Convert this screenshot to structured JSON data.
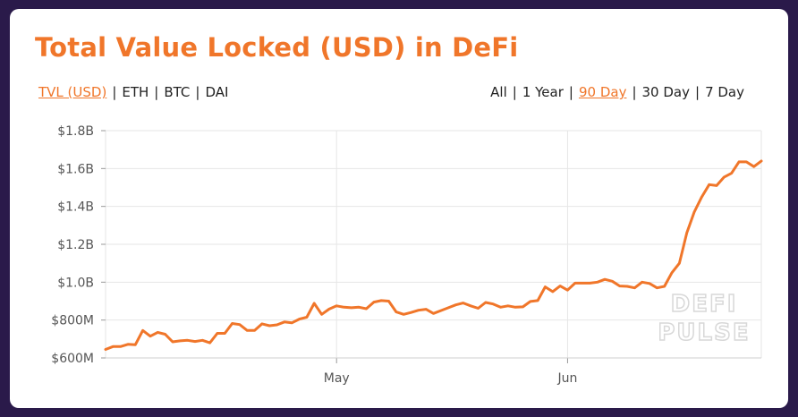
{
  "header": {
    "title": "Total Value Locked (USD) in DeFi",
    "unit_options": [
      {
        "label": "TVL (USD)",
        "active": true
      },
      {
        "label": "ETH",
        "active": false
      },
      {
        "label": "BTC",
        "active": false
      },
      {
        "label": "DAI",
        "active": false
      }
    ],
    "range_options": [
      {
        "label": "All",
        "active": false
      },
      {
        "label": "1 Year",
        "active": false
      },
      {
        "label": "90 Day",
        "active": true
      },
      {
        "label": "30 Day",
        "active": false
      },
      {
        "label": "7 Day",
        "active": false
      }
    ],
    "separator": "|"
  },
  "watermark": {
    "line1": "DEFI",
    "line2": "PULSE"
  },
  "colors": {
    "accent": "#f0762a",
    "background": "#2a1a4a",
    "grid": "#e6e6e6"
  },
  "chart_data": {
    "type": "line",
    "title": "Total Value Locked (USD) in DeFi",
    "xlabel": "",
    "ylabel": "",
    "y_ticks": [
      {
        "value": 600000000,
        "label": "$600M"
      },
      {
        "value": 800000000,
        "label": "$800M"
      },
      {
        "value": 1000000000,
        "label": "$1.0B"
      },
      {
        "value": 1200000000,
        "label": "$1.2B"
      },
      {
        "value": 1400000000,
        "label": "$1.4B"
      },
      {
        "value": 1600000000,
        "label": "$1.6B"
      },
      {
        "value": 1800000000,
        "label": "$1.8B"
      }
    ],
    "ylim": [
      600000000,
      1800000000
    ],
    "x_ticks": [
      {
        "date": "2020-05-01",
        "label": "May"
      },
      {
        "date": "2020-06-01",
        "label": "Jun"
      }
    ],
    "xlim": [
      "2020-03-31",
      "2020-06-27"
    ],
    "grid": true,
    "legend": "none",
    "series": [
      {
        "x": [
          "2020-03-31",
          "2020-04-01",
          "2020-04-02",
          "2020-04-03",
          "2020-04-04",
          "2020-04-05",
          "2020-04-06",
          "2020-04-07",
          "2020-04-08",
          "2020-04-09",
          "2020-04-10",
          "2020-04-11",
          "2020-04-12",
          "2020-04-13",
          "2020-04-14",
          "2020-04-15",
          "2020-04-16",
          "2020-04-17",
          "2020-04-18",
          "2020-04-19",
          "2020-04-20",
          "2020-04-21",
          "2020-04-22",
          "2020-04-23",
          "2020-04-24",
          "2020-04-25",
          "2020-04-26",
          "2020-04-27",
          "2020-04-28",
          "2020-04-29",
          "2020-04-30",
          "2020-05-01",
          "2020-05-02",
          "2020-05-03",
          "2020-05-04",
          "2020-05-05",
          "2020-05-06",
          "2020-05-07",
          "2020-05-08",
          "2020-05-09",
          "2020-05-10",
          "2020-05-11",
          "2020-05-12",
          "2020-05-13",
          "2020-05-14",
          "2020-05-15",
          "2020-05-16",
          "2020-05-17",
          "2020-05-18",
          "2020-05-19",
          "2020-05-20",
          "2020-05-21",
          "2020-05-22",
          "2020-05-23",
          "2020-05-24",
          "2020-05-25",
          "2020-05-26",
          "2020-05-27",
          "2020-05-28",
          "2020-05-29",
          "2020-05-30",
          "2020-05-31",
          "2020-06-01",
          "2020-06-02",
          "2020-06-03",
          "2020-06-04",
          "2020-06-05",
          "2020-06-06",
          "2020-06-07",
          "2020-06-08",
          "2020-06-09",
          "2020-06-10",
          "2020-06-11",
          "2020-06-12",
          "2020-06-13",
          "2020-06-14",
          "2020-06-15",
          "2020-06-16",
          "2020-06-17",
          "2020-06-18",
          "2020-06-19",
          "2020-06-20",
          "2020-06-21",
          "2020-06-22",
          "2020-06-23",
          "2020-06-24",
          "2020-06-25",
          "2020-06-26",
          "2020-06-27"
        ],
        "values": [
          645000000,
          660000000,
          660000000,
          672000000,
          670000000,
          745000000,
          715000000,
          735000000,
          725000000,
          685000000,
          690000000,
          693000000,
          687000000,
          693000000,
          680000000,
          730000000,
          730000000,
          782000000,
          776000000,
          745000000,
          745000000,
          780000000,
          770000000,
          775000000,
          790000000,
          785000000,
          805000000,
          815000000,
          888000000,
          830000000,
          858000000,
          875000000,
          868000000,
          865000000,
          868000000,
          860000000,
          895000000,
          903000000,
          900000000,
          843000000,
          830000000,
          840000000,
          852000000,
          857000000,
          835000000,
          850000000,
          865000000,
          880000000,
          890000000,
          875000000,
          862000000,
          893000000,
          885000000,
          868000000,
          875000000,
          868000000,
          870000000,
          898000000,
          903000000,
          975000000,
          950000000,
          980000000,
          958000000,
          995000000,
          995000000,
          995000000,
          1000000000,
          1015000000,
          1005000000,
          980000000,
          978000000,
          970000000,
          1000000000,
          993000000,
          970000000,
          978000000,
          1050000000,
          1100000000,
          1260000000,
          1370000000,
          1450000000,
          1515000000,
          1510000000,
          1555000000,
          1575000000,
          1635000000,
          1635000000,
          1610000000,
          1640000000
        ]
      }
    ]
  }
}
